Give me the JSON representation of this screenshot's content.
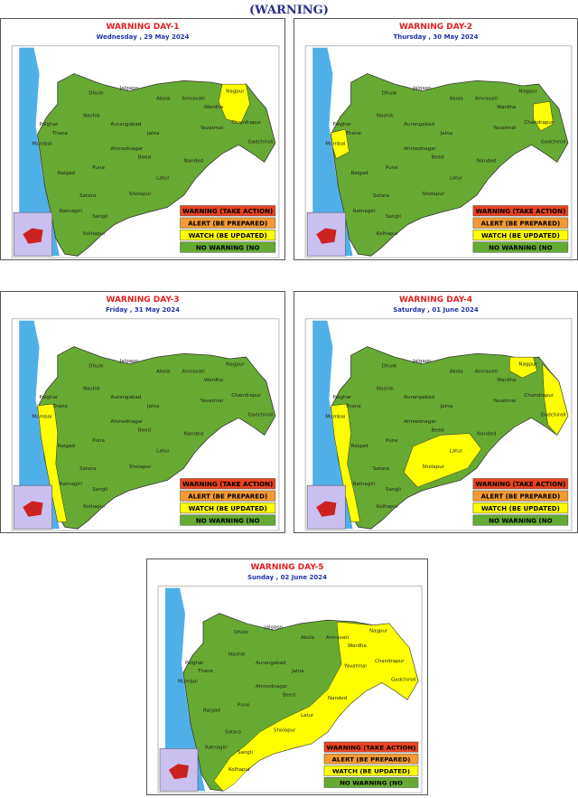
{
  "header": {
    "title": "(WARNING)"
  },
  "map_labels": [
    "Mumbai",
    "Palghar",
    "Thane",
    "Nashik",
    "Jalgaon",
    "Dhule",
    "Amravati",
    "Nagpur",
    "Wardha",
    "Akola",
    "Yavatmal",
    "Chandrapur",
    "Gadchiroli",
    "Aurangabad",
    "Jalna",
    "Ahmednagar",
    "Pune",
    "Beed",
    "Nanded",
    "Latur",
    "Satara",
    "Sholapur",
    "Sangli",
    "Kolhapur",
    "Raigad",
    "Ratnagiri"
  ],
  "legend": [
    {
      "label": "WARNING (TAKE ACTION)",
      "color": "#e8431f"
    },
    {
      "label": "ALERT (BE PREPARED)",
      "color": "#f39a32"
    },
    {
      "label": "WATCH (BE UPDATED)",
      "color": "#ffff00"
    },
    {
      "label": "NO WARNING (NO",
      "color": "#66aa33"
    }
  ],
  "panels": [
    {
      "title": "WARNING  DAY-1",
      "date": "Wednesday ,  29 May 2024"
    },
    {
      "title": "WARNING  DAY-2",
      "date": "Thursday ,  30 May 2024"
    },
    {
      "title": "WARNING  DAY-3",
      "date": "Friday ,  31 May 2024"
    },
    {
      "title": "WARNING  DAY-4",
      "date": "Saturday ,  01 June 2024"
    },
    {
      "title": "WARNING  DAY-5",
      "date": "Sunday ,  02 June 2024"
    }
  ]
}
